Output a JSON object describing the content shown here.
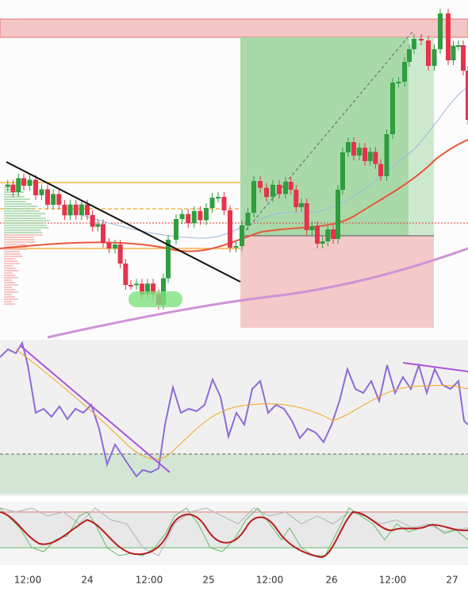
{
  "x_axis": {
    "labels": [
      "12:00",
      "24",
      "12:00",
      "25",
      "12:00",
      "26",
      "12:00",
      "27"
    ]
  }
}
